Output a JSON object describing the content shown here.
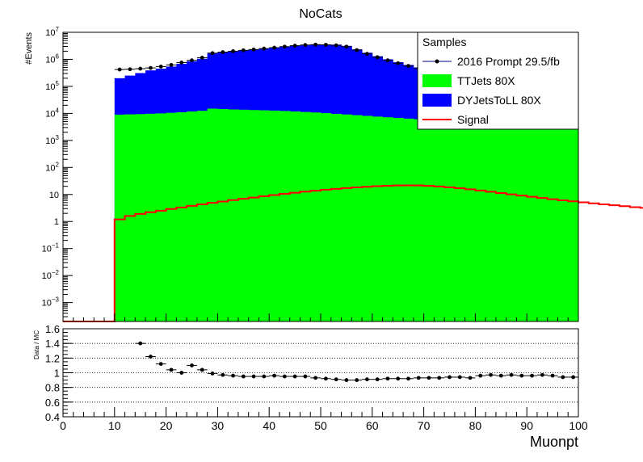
{
  "chart_data": [
    {
      "type": "histogram",
      "title": "NoCats",
      "ylabel": "#Events",
      "xlabel": "Muonpt",
      "yscale": "log",
      "ylim": [
        0.0002,
        10000000
      ],
      "xlim": [
        0,
        100
      ],
      "bin_width": 2,
      "x_tick_labels": [
        "0",
        "10",
        "20",
        "30",
        "40",
        "50",
        "60",
        "70",
        "80",
        "90",
        "100"
      ],
      "y_tick_labels": [
        {
          "base": "10",
          "exp": "7",
          "value": 10000000
        },
        {
          "base": "10",
          "exp": "6",
          "value": 1000000
        },
        {
          "base": "10",
          "exp": "5",
          "value": 100000
        },
        {
          "base": "10",
          "exp": "4",
          "value": 10000
        },
        {
          "base": "10",
          "exp": "3",
          "value": 1000
        },
        {
          "base": "10",
          "exp": "2",
          "value": 100
        },
        {
          "base": "10",
          "exp": "",
          "value": 10
        },
        {
          "base": "1",
          "exp": "",
          "value": 1
        },
        {
          "base": "10",
          "exp": "−1",
          "value": 0.1
        },
        {
          "base": "10",
          "exp": "−2",
          "value": 0.01
        },
        {
          "base": "10",
          "exp": "−3",
          "value": 0.001
        }
      ],
      "legend": {
        "title": "Samples",
        "placement": "top-right",
        "entries": [
          {
            "label": "2016 Prompt 29.5/fb",
            "kind": "marker",
            "color": "#000080"
          },
          {
            "label": "TTJets 80X",
            "kind": "fill",
            "color": "#00ff00"
          },
          {
            "label": "DYJetsToLL 80X",
            "kind": "fill",
            "color": "#0000ff"
          },
          {
            "label": "Signal",
            "kind": "line",
            "color": "#ff0000"
          }
        ]
      },
      "series": [
        {
          "name": "TTJets 80X",
          "color": "#00ff00",
          "x_start": 10,
          "values": [
            9000,
            9200,
            9400,
            9700,
            10000,
            10500,
            11000,
            11800,
            12500,
            15000,
            14500,
            14000,
            13700,
            13300,
            13000,
            12700,
            12300,
            11800,
            11300,
            10800,
            10200,
            9600,
            9100,
            8600,
            8100,
            7600,
            7200,
            6800,
            6400,
            6100,
            5800,
            5500,
            5200,
            5000,
            4800,
            4600,
            4400,
            4200,
            4000,
            3800,
            3600,
            3400,
            3200,
            3000,
            2900
          ]
        },
        {
          "name": "DYJetsToLL 80X",
          "color": "#0000ff",
          "stacked_on": "TTJets 80X",
          "x_start": 10,
          "total_values": [
            200000,
            250000,
            310000,
            390000,
            450000,
            540000,
            680000,
            850000,
            1050000,
            1650000,
            1850000,
            2000000,
            2150000,
            2300000,
            2500000,
            2700000,
            2900000,
            3100000,
            3300000,
            3450000,
            3550000,
            3500000,
            3150000,
            2350000,
            1750000,
            1300000,
            1000000,
            780000,
            620000,
            500000,
            400000,
            330000,
            270000,
            230000,
            200000,
            175000,
            155000,
            140000,
            125000,
            110000,
            98000,
            88000,
            79000,
            71000,
            64000
          ]
        },
        {
          "name": "Signal",
          "color": "#ff0000",
          "x_start": 10,
          "values": [
            1.2,
            1.6,
            1.9,
            2.2,
            2.5,
            2.9,
            3.3,
            3.8,
            4.3,
            4.9,
            5.5,
            6.2,
            6.9,
            7.7,
            8.6,
            9.5,
            10.5,
            11.6,
            12.7,
            13.8,
            15,
            16,
            17.2,
            18.3,
            19.3,
            20.2,
            21,
            21.5,
            21.8,
            21.5,
            20.8,
            19.8,
            18.5,
            17,
            15.5,
            14,
            12.6,
            11.3,
            10.1,
            9.1,
            8.2,
            7.4,
            6.7,
            6.1,
            5.6,
            5.1,
            4.7,
            4.3,
            4,
            3.7,
            3.4,
            3.2,
            3,
            2.8,
            2.7
          ]
        },
        {
          "name": "2016 Prompt 29.5/fb",
          "color": "#000080",
          "x": [
            11,
            13,
            15,
            17,
            19,
            21,
            23,
            25,
            27,
            29,
            31,
            33,
            35,
            37,
            39,
            41,
            43,
            45,
            47,
            49,
            51,
            53,
            55,
            57,
            59,
            61,
            63,
            65,
            67,
            69,
            71,
            73,
            75,
            77,
            79,
            81,
            83,
            85,
            87,
            89,
            91,
            93,
            95,
            97,
            99
          ],
          "y": [
            420000,
            430000,
            450000,
            480000,
            540000,
            620000,
            760000,
            920000,
            1150000,
            1700000,
            1850000,
            2000000,
            2150000,
            2300000,
            2500000,
            2700000,
            2950000,
            3200000,
            3400000,
            3500000,
            3450000,
            3300000,
            2950000,
            2200000,
            1600000,
            1200000,
            920000,
            720000,
            570000,
            460000,
            380000,
            310000,
            260000,
            220000,
            190000,
            165000,
            145000,
            130000,
            118000,
            105000,
            95000,
            86000,
            78000,
            70000,
            63000
          ]
        }
      ]
    },
    {
      "type": "scatter",
      "ylabel": "Data / MC",
      "ylim": [
        0.4,
        1.6
      ],
      "xlim": [
        0,
        100
      ],
      "grid": "horizontal dotted",
      "x_tick_labels": [
        "0",
        "10",
        "20",
        "30",
        "40",
        "50",
        "60",
        "70",
        "80",
        "90",
        "100"
      ],
      "y_tick_labels": [
        "0.4",
        "0.6",
        "0.8",
        "1",
        "1.2",
        "1.4",
        "1.6"
      ],
      "series": [
        {
          "x": [
            15,
            17,
            19,
            21,
            23,
            25,
            27,
            29,
            31,
            33,
            35,
            37,
            39,
            41,
            43,
            45,
            47,
            49,
            51,
            53,
            55,
            57,
            59,
            61,
            63,
            65,
            67,
            69,
            71,
            73,
            75,
            77,
            79,
            81,
            83,
            85,
            87,
            89,
            91,
            93,
            95,
            97,
            99
          ],
          "y": [
            1.4,
            1.22,
            1.12,
            1.04,
            1.0,
            1.1,
            1.04,
            0.99,
            0.97,
            0.96,
            0.95,
            0.95,
            0.95,
            0.96,
            0.95,
            0.95,
            0.95,
            0.93,
            0.92,
            0.91,
            0.9,
            0.9,
            0.91,
            0.91,
            0.92,
            0.92,
            0.92,
            0.93,
            0.93,
            0.93,
            0.94,
            0.94,
            0.93,
            0.96,
            0.97,
            0.96,
            0.97,
            0.96,
            0.96,
            0.97,
            0.96,
            0.94,
            0.94
          ]
        }
      ]
    }
  ]
}
